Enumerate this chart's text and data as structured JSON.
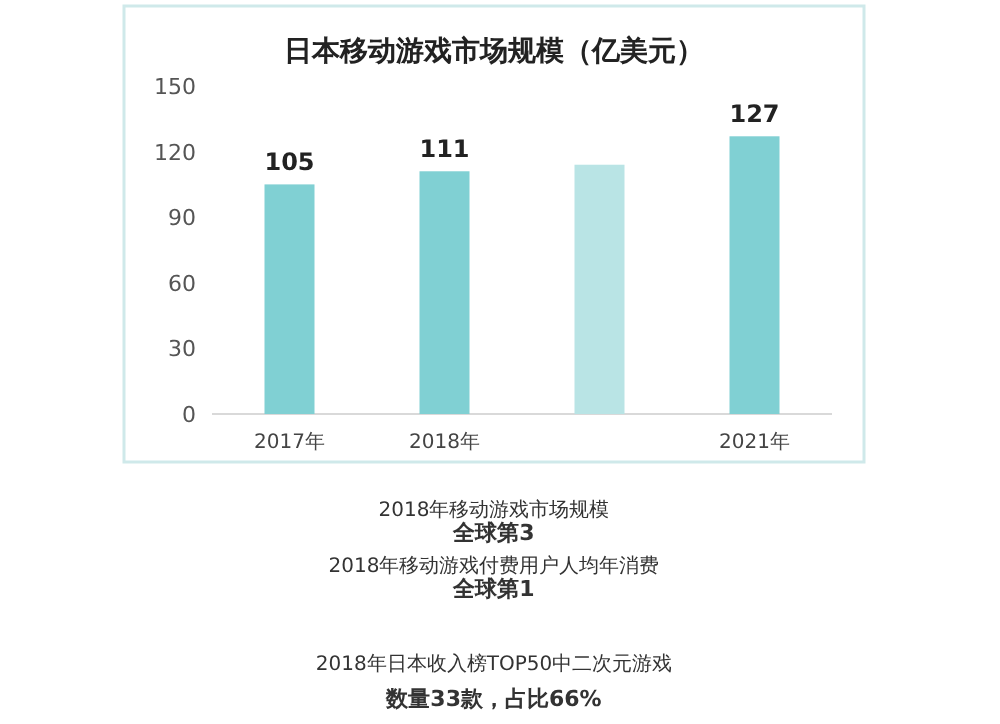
{
  "chart_data": {
    "type": "bar",
    "title": "日本移动游戏市场规模（亿美元）",
    "categories": [
      "2017年",
      "2018年",
      null,
      "2021年"
    ],
    "values": [
      105,
      111,
      114,
      127
    ],
    "colors": [
      "#80d0d3",
      "#80d0d3",
      "#b9e4e5",
      "#80d0d3"
    ],
    "value_labels": [
      "105",
      "111",
      null,
      "127"
    ],
    "ylim": [
      0,
      150
    ],
    "yticks": [
      0,
      30,
      60,
      90,
      120,
      150
    ],
    "grid": false,
    "annotations": [
      "2018年移动游戏市场规模",
      "全球第3",
      "2018年移动游戏付费用户人均年消费",
      "全球第1",
      "2018年日本收入榜TOP50中二次元游戏",
      "数量33款，占比66%"
    ]
  }
}
